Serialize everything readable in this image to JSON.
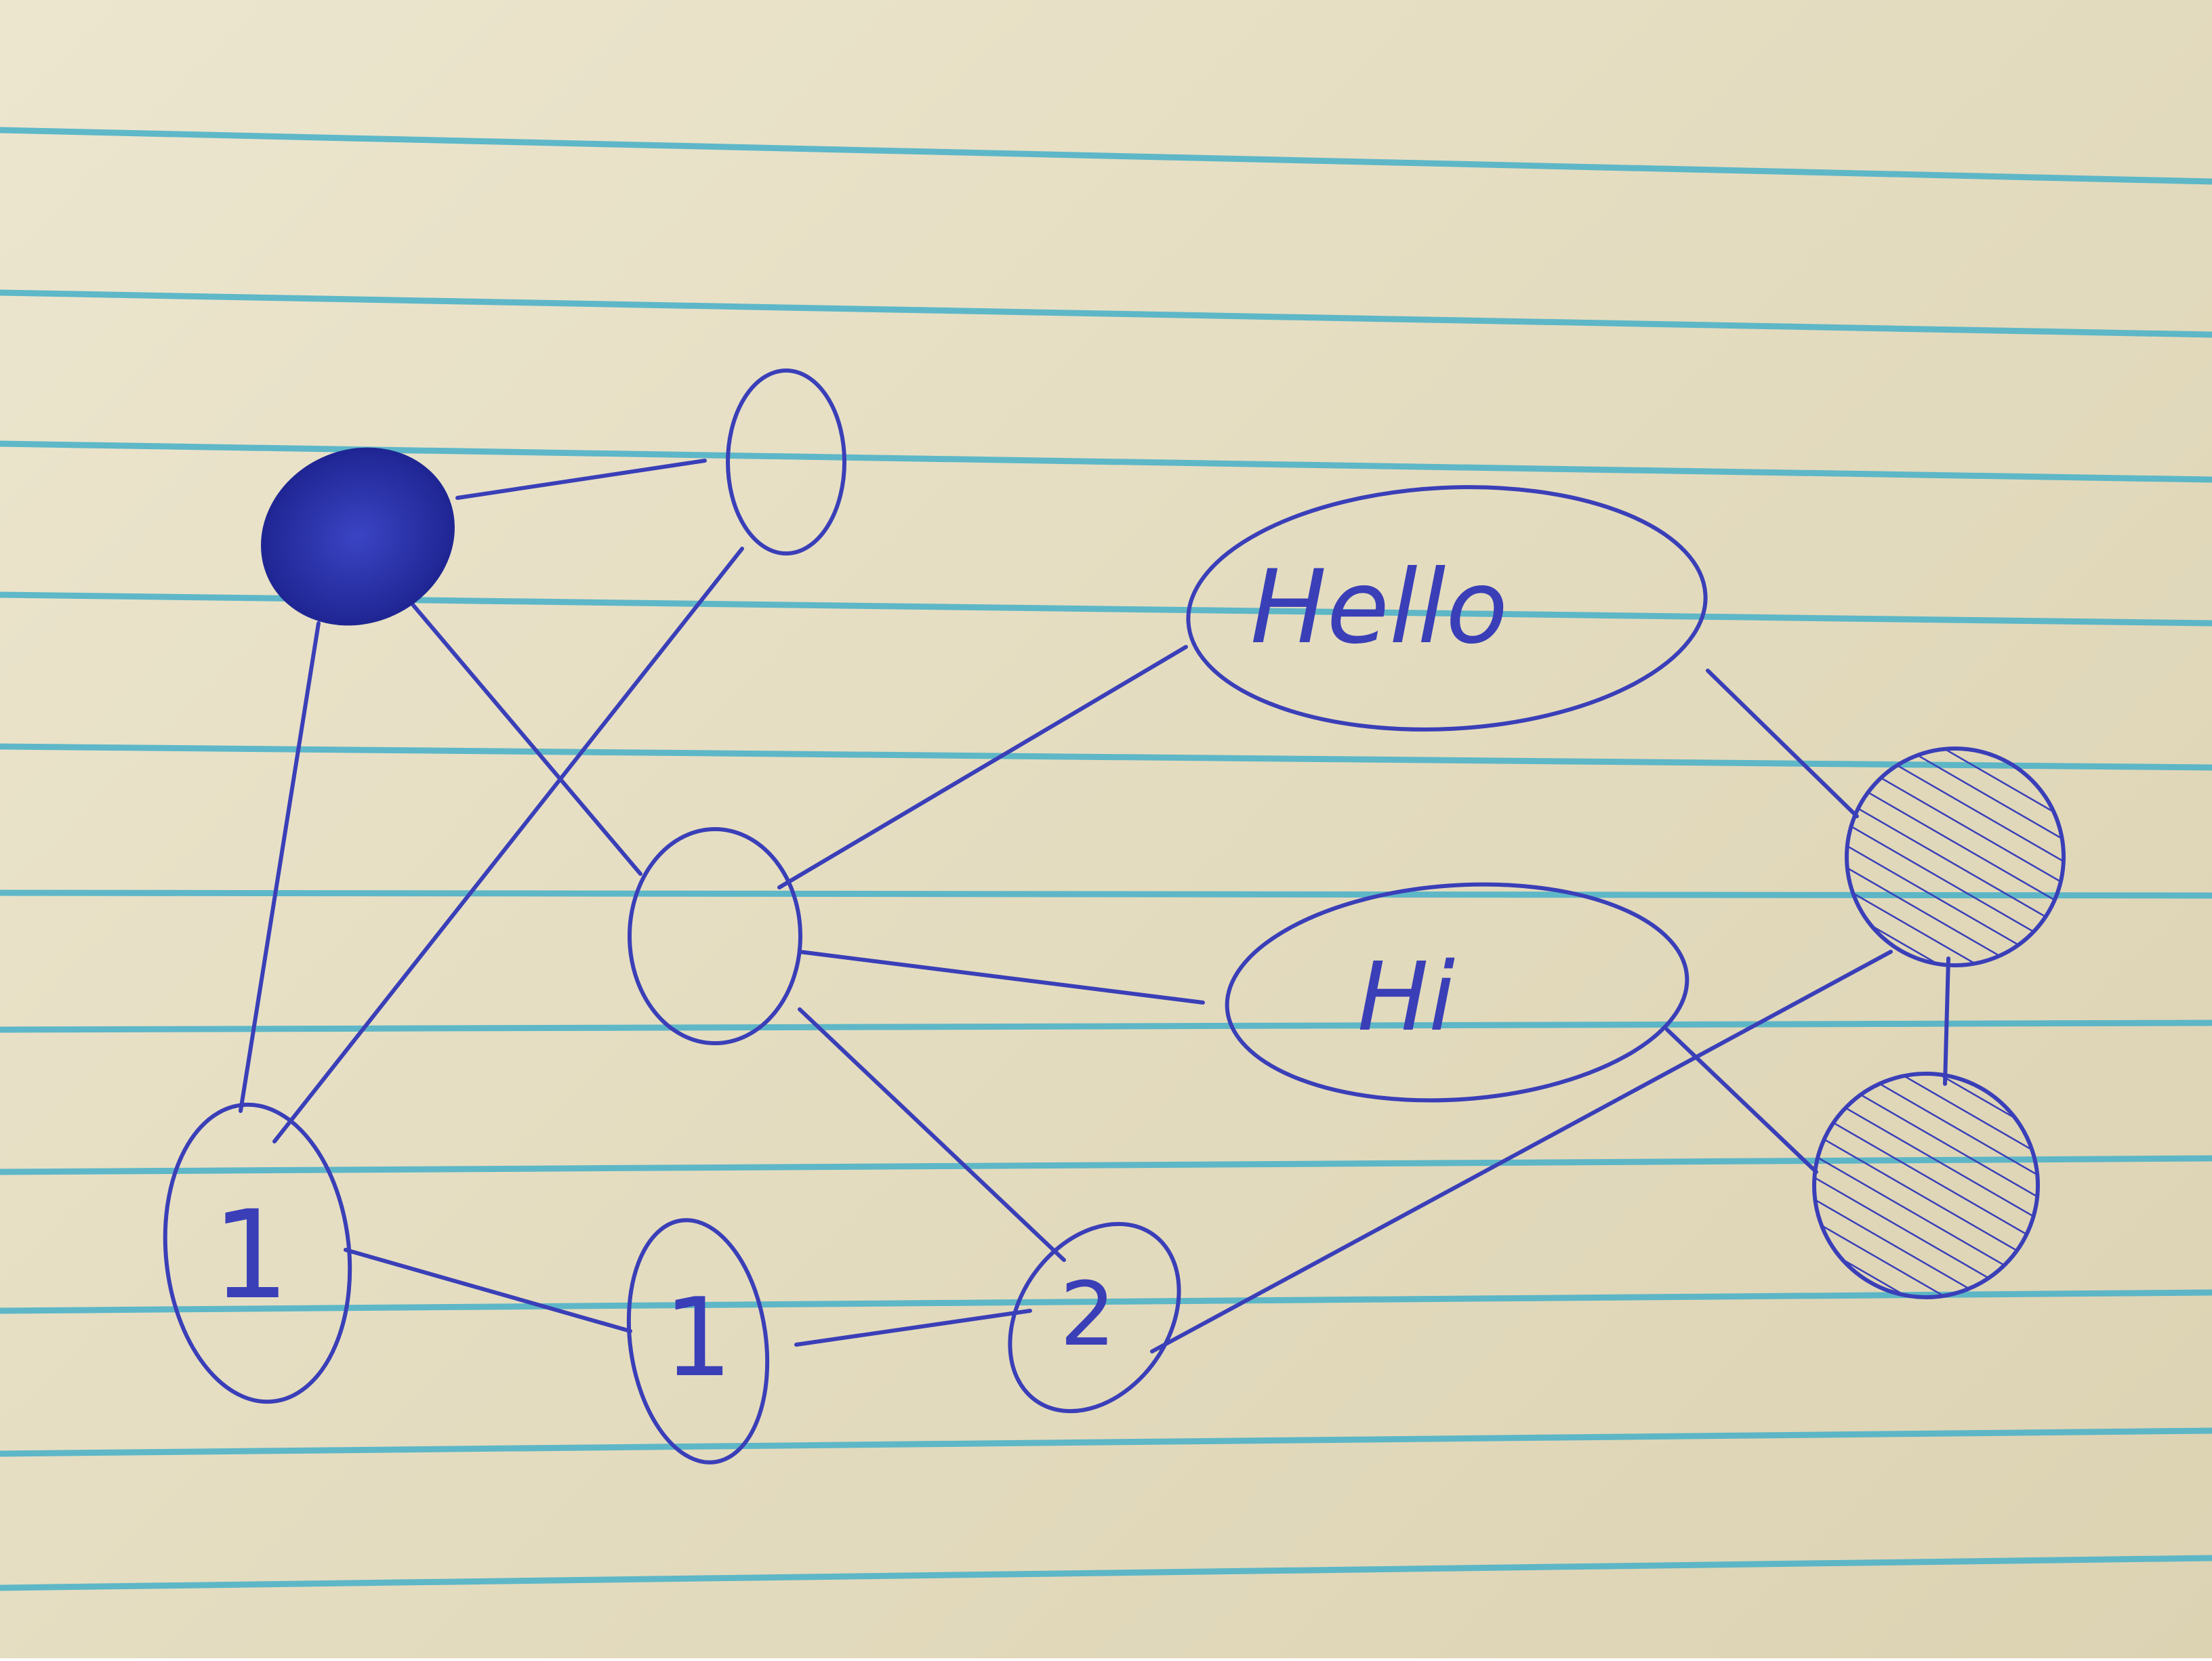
{
  "colors": {
    "paper": "#e6dfc5",
    "rule_line": "#4fb2c8",
    "ink": "#3a3fb8",
    "ink_dark": "#1f2694"
  },
  "nodes": {
    "filled_node": {
      "label": "",
      "fill": "solid"
    },
    "top_node": {
      "label": "",
      "fill": "none"
    },
    "center_node": {
      "label": "",
      "fill": "none"
    },
    "hello_node": {
      "label": "Hello",
      "fill": "none"
    },
    "hi_node": {
      "label": "Hi",
      "fill": "none"
    },
    "hatched_node_upper": {
      "label": "",
      "fill": "hatched"
    },
    "hatched_node_lower": {
      "label": "",
      "fill": "hatched"
    },
    "one_left_node": {
      "label": "1",
      "fill": "none"
    },
    "one_middle_node": {
      "label": "1",
      "fill": "none"
    },
    "two_node": {
      "label": "2",
      "fill": "none"
    }
  },
  "edges": [
    [
      "filled_node",
      "top_node"
    ],
    [
      "filled_node",
      "center_node"
    ],
    [
      "filled_node",
      "one_left_node"
    ],
    [
      "top_node",
      "one_left_node"
    ],
    [
      "center_node",
      "hello_node"
    ],
    [
      "center_node",
      "hi_node"
    ],
    [
      "center_node",
      "two_node"
    ],
    [
      "hello_node",
      "hatched_node_upper"
    ],
    [
      "hi_node",
      "hatched_node_lower"
    ],
    [
      "hatched_node_upper",
      "hatched_node_lower"
    ],
    [
      "hatched_node_upper",
      "two_node"
    ],
    [
      "one_left_node",
      "one_middle_node"
    ],
    [
      "one_middle_node",
      "two_node"
    ]
  ]
}
